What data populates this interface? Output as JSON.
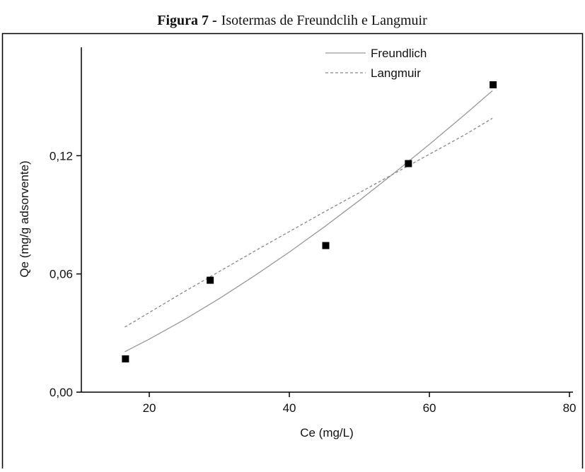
{
  "chart_data": {
    "type": "scatter",
    "figure_label": "Figura 7 -",
    "title": "Isotermas de Freundclih e Langmuir",
    "x_label": "Ce (mg/L)",
    "y_label": "Qe (mg/g adsorvente)",
    "xlim": [
      10.3,
      80.5
    ],
    "ylim": [
      0,
      0.175
    ],
    "xticks": [
      20,
      40,
      60,
      80
    ],
    "yticks": [
      {
        "value": 0,
        "label": "0,00"
      },
      {
        "value": 0.06,
        "label": "0,06"
      },
      {
        "value": 0.12,
        "label": "0,12"
      }
    ],
    "points": {
      "color": "#000000",
      "x": [
        16.6,
        28.7,
        45.2,
        57.0,
        69.1
      ],
      "values": [
        0.0169,
        0.0568,
        0.0744,
        0.116,
        0.156
      ]
    },
    "series": [
      {
        "name": "Freundlich",
        "color": "#999999",
        "style": "solid",
        "x": [
          16.5,
          20,
          25,
          30,
          35,
          40,
          45,
          50,
          55,
          60,
          65,
          69
        ],
        "values": [
          0.0205,
          0.0269,
          0.0368,
          0.0475,
          0.059,
          0.0711,
          0.0839,
          0.0973,
          0.1113,
          0.1258,
          0.1407,
          0.153
        ]
      },
      {
        "name": "Langmuir",
        "color": "#888888",
        "style": "dashed",
        "x": [
          16.5,
          25,
          35,
          45,
          55,
          65,
          69
        ],
        "values": [
          0.033,
          0.051,
          0.0715,
          0.0915,
          0.111,
          0.1305,
          0.139
        ]
      }
    ]
  }
}
